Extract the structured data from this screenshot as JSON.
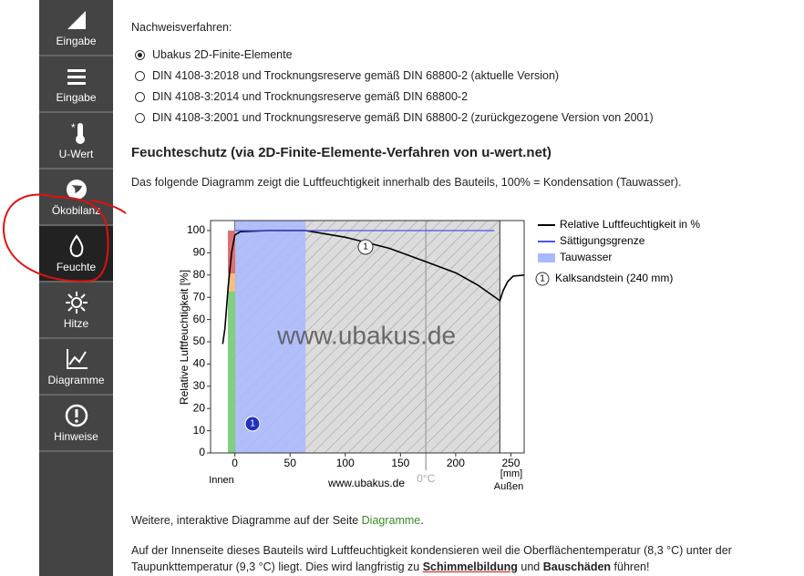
{
  "sidebar": {
    "items": [
      "Eingabe",
      "Eingabe",
      "U-Wert",
      "Ökobilanz",
      "Feuchte",
      "Hitze",
      "Diagramme",
      "Hinweise"
    ],
    "active": 4
  },
  "form": {
    "label": "Nachweisverfahren:",
    "selected": 0,
    "options": [
      "Ubakus 2D-Finite-Elemente",
      "DIN 4108-3:2018 und Trocknungsreserve gemäß DIN 68800-2 (aktuelle Version)",
      "DIN 4108-3:2014 und Trocknungsreserve gemäß DIN 68800-2",
      "DIN 4108-3:2001 und Trocknungsreserve gemäß DIN 68800-2 (zurückgezogene Version von 2001)"
    ]
  },
  "section": {
    "heading": "Feuchteschutz (via 2D-Finite-Elemente-Verfahren von u-wert.net)",
    "intro": "Das folgende Diagramm zeigt die Luftfeuchtigkeit innerhalb des Bauteils, 100% = Kondensation (Tauwasser)."
  },
  "chart_data": {
    "type": "line",
    "y_label": "Relative Luftfeuchtigkeit [%]",
    "x_unit": "[mm]",
    "inside_label": "Innen",
    "outside_label": "Außen",
    "watermark": "www.ubakus.de",
    "source": "www.ubakus.de",
    "xlim": [
      -22,
      262
    ],
    "ylim": [
      0,
      104.5
    ],
    "xticks": [
      0,
      50,
      100,
      150,
      200,
      250
    ],
    "yticks": [
      0,
      10,
      20,
      30,
      40,
      50,
      60,
      70,
      80,
      90,
      100
    ],
    "series": [
      {
        "name": "Relative Luftfeuchtigkeit in %",
        "color": "#000000",
        "x": [
          -11,
          -9,
          -6,
          -3,
          0,
          5,
          30,
          64,
          100,
          140,
          173,
          200,
          220,
          240,
          243,
          247,
          252,
          262
        ],
        "values": [
          49,
          56,
          75,
          90,
          98,
          99.5,
          100,
          100,
          97,
          92,
          86,
          81,
          75.5,
          68.5,
          73,
          77,
          79.5,
          80
        ]
      },
      {
        "name": "Sättigungsgrenze",
        "color": "#4a55f0",
        "x": [
          0,
          235
        ],
        "values": [
          100,
          100
        ]
      }
    ],
    "condensation": {
      "name": "Tauwasser",
      "color": "#a9b9ff",
      "x_range": [
        0,
        64
      ]
    },
    "layers": [
      {
        "marker": "1",
        "name": "Kalksandstein (240 mm)",
        "x_range": [
          0,
          240
        ]
      }
    ],
    "frost_line": {
      "label": "0°C",
      "x": 173
    }
  },
  "footer": {
    "more": [
      "Weitere, interaktive Diagramme auf der Seite ",
      "Diagramme",
      "."
    ],
    "warning": [
      "Auf der Innenseite dieses Bauteils wird Luftfeuchtigkeit kondensieren weil die Oberflächentemperatur (8,3 °C) unter der Taupunkttemperatur (9,3 °C) liegt. Dies wird langfristig zu ",
      "Schimmelbildung",
      " und ",
      "Bauschäden",
      " führen!"
    ]
  }
}
